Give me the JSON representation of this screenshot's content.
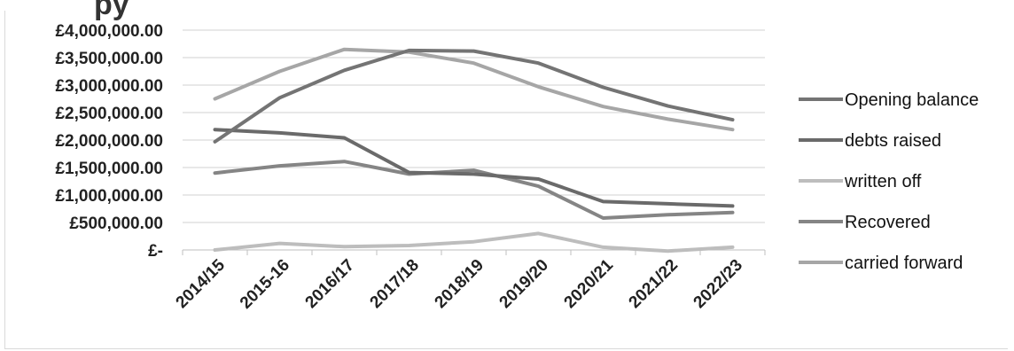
{
  "chart_data": {
    "type": "line",
    "title": "",
    "title_visible_fragment": "py",
    "xlabel": "",
    "ylabel": "",
    "categories": [
      "2014/15",
      "2015-16",
      "2016/17",
      "2017/18",
      "2018/19",
      "2019/20",
      "2020/21",
      "2021/22",
      "2022/23"
    ],
    "y_tick_labels": [
      "£4,000,000.00",
      "£3,500,000.00",
      "£3,000,000.00",
      "£2,500,000.00",
      "£2,000,000.00",
      "£1,500,000.00",
      "£1,000,000.00",
      "£500,000.00",
      "£-"
    ],
    "ylim": [
      0,
      4000000
    ],
    "grid": true,
    "legend_position": "right",
    "series": [
      {
        "name": "Opening balance",
        "color": "#747474",
        "values": [
          1970000,
          2770000,
          3270000,
          3630000,
          3620000,
          3400000,
          2960000,
          2620000,
          2370000
        ]
      },
      {
        "name": "debts raised",
        "color": "#6a6a6a",
        "values": [
          2190000,
          2130000,
          2040000,
          1410000,
          1380000,
          1290000,
          880000,
          840000,
          800000
        ]
      },
      {
        "name": "written off",
        "color": "#bdbdbd",
        "values": [
          0,
          120000,
          60000,
          80000,
          150000,
          300000,
          50000,
          -20000,
          50000
        ]
      },
      {
        "name": "Recovered",
        "color": "#858585",
        "values": [
          1400000,
          1530000,
          1610000,
          1380000,
          1450000,
          1160000,
          580000,
          640000,
          680000
        ]
      },
      {
        "name": "carried forward",
        "color": "#a6a6a6",
        "values": [
          2750000,
          3250000,
          3650000,
          3600000,
          3400000,
          2970000,
          2610000,
          2380000,
          2190000
        ]
      }
    ]
  }
}
